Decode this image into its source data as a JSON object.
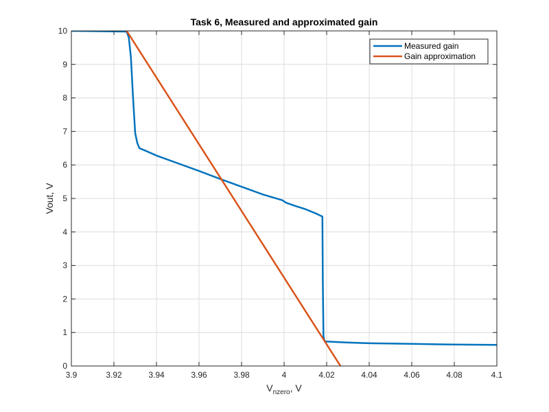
{
  "chart_data": {
    "type": "line",
    "title": "Task 6, Measured and approximated gain",
    "xlabel": {
      "main": "V",
      "sub": "nzero",
      "suffix": ", V"
    },
    "ylabel": "Vout, V",
    "xlim": [
      3.9,
      4.1
    ],
    "ylim": [
      0,
      10
    ],
    "xticks": [
      3.9,
      3.92,
      3.94,
      3.96,
      3.98,
      4.0,
      4.02,
      4.04,
      4.06,
      4.08,
      4.1
    ],
    "xtick_labels": [
      "3.9",
      "3.92",
      "3.94",
      "3.96",
      "3.98",
      "4",
      "4.02",
      "4.04",
      "4.06",
      "4.08",
      "4.1"
    ],
    "yticks": [
      0,
      1,
      2,
      3,
      4,
      5,
      6,
      7,
      8,
      9,
      10
    ],
    "ytick_labels": [
      "0",
      "1",
      "2",
      "3",
      "4",
      "5",
      "6",
      "7",
      "8",
      "9",
      "10"
    ],
    "grid": true,
    "legend_position": "top-right",
    "series": [
      {
        "name": "Measured gain",
        "color": "#0072BD",
        "x": [
          3.9,
          3.926,
          3.927,
          3.928,
          3.929,
          3.93,
          3.931,
          3.932,
          3.935,
          3.94,
          3.95,
          3.96,
          3.97,
          3.98,
          3.99,
          3.999,
          4.001,
          4.005,
          4.01,
          4.015,
          4.018,
          4.0182,
          4.0185,
          4.019,
          4.02,
          4.03,
          4.04,
          4.06,
          4.08,
          4.1
        ],
        "y": [
          10.0,
          9.98,
          9.8,
          9.2,
          8.0,
          6.95,
          6.65,
          6.5,
          6.42,
          6.28,
          6.05,
          5.82,
          5.58,
          5.35,
          5.12,
          4.95,
          4.87,
          4.78,
          4.68,
          4.55,
          4.46,
          2.5,
          0.9,
          0.74,
          0.73,
          0.7,
          0.68,
          0.66,
          0.64,
          0.63
        ]
      },
      {
        "name": "Gain approximation",
        "color": "#D95319",
        "x": [
          3.926,
          4.0265
        ],
        "y": [
          10.0,
          0.0
        ]
      }
    ]
  }
}
